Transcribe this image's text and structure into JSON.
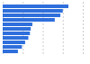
{
  "chart_data": {
    "type": "bar",
    "orientation": "horizontal",
    "categories": [
      null,
      null,
      null,
      null,
      null,
      null,
      null,
      null,
      null,
      null,
      null
    ],
    "values": [
      82,
      75,
      72,
      65,
      37,
      35,
      34,
      32,
      28,
      24,
      19
    ],
    "color": "#2f6fdc",
    "xlim": [
      0,
      100
    ],
    "xticks": [
      0,
      25,
      50,
      75,
      100
    ],
    "grid": true,
    "tick_labels": false
  }
}
